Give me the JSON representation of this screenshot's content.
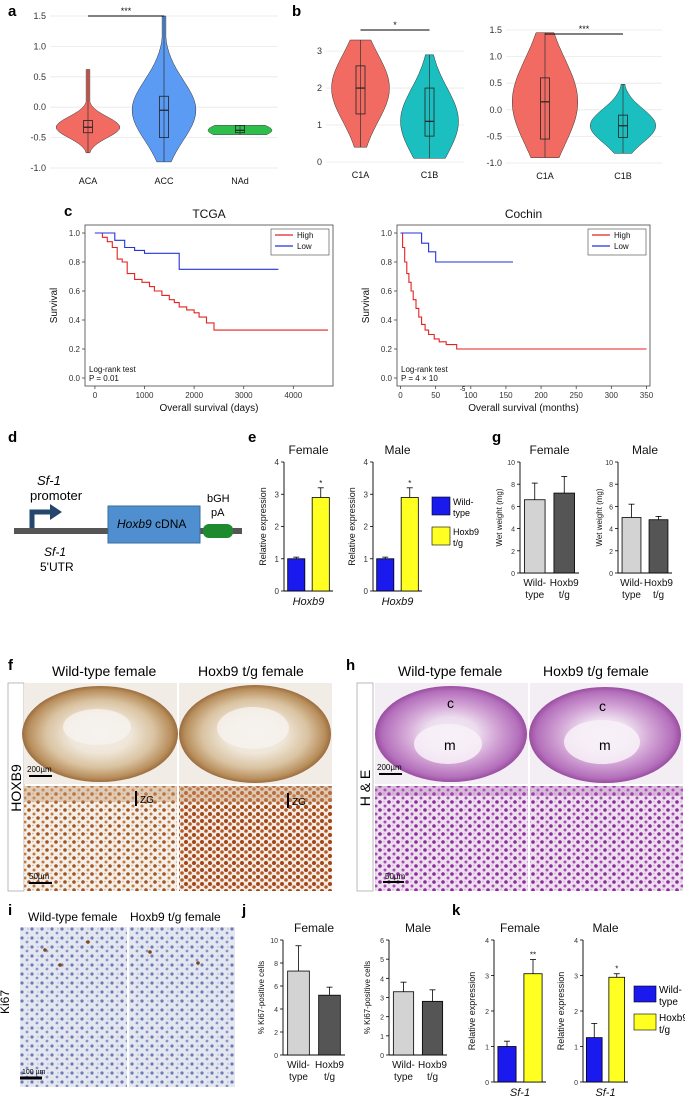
{
  "panels": {
    "a": {
      "letter": "a"
    },
    "b": {
      "letter": "b"
    },
    "c": {
      "letter": "c"
    },
    "d": {
      "letter": "d"
    },
    "e": {
      "letter": "e"
    },
    "f": {
      "letter": "f"
    },
    "g": {
      "letter": "g"
    },
    "h": {
      "letter": "h"
    },
    "i": {
      "letter": "i"
    },
    "j": {
      "letter": "j"
    },
    "k": {
      "letter": "k"
    }
  },
  "chart_data": [
    {
      "id": "a",
      "type": "violin+box",
      "categories": [
        "ACA",
        "ACC",
        "NAd"
      ],
      "colors": [
        "#f26b63",
        "#5b9bf3",
        "#2dbf4c"
      ],
      "yticks": [
        "-1.0",
        "-0.5",
        "0.0",
        "0.5",
        "1.0",
        "1.5"
      ],
      "ylim": [
        -1.0,
        1.5
      ],
      "medians": [
        -0.33,
        -0.05,
        -0.38
      ],
      "q1": [
        -0.42,
        -0.5,
        -0.42
      ],
      "q3": [
        -0.22,
        0.18,
        -0.3
      ],
      "ranges": [
        [
          -0.75,
          0.62
        ],
        [
          -0.9,
          1.5
        ],
        [
          -0.45,
          -0.3
        ]
      ],
      "significance": "***"
    },
    {
      "id": "b1",
      "type": "violin+box",
      "categories": [
        "C1A",
        "C1B"
      ],
      "colors": [
        "#f26b63",
        "#1bbfbf"
      ],
      "yticks": [
        "0",
        "1",
        "2",
        "3"
      ],
      "ylim": [
        0,
        3.3
      ],
      "medians": [
        2.0,
        1.1
      ],
      "q1": [
        1.3,
        0.7
      ],
      "q3": [
        2.6,
        2.0
      ],
      "ranges": [
        [
          0.4,
          3.3
        ],
        [
          0.1,
          2.9
        ]
      ],
      "significance": "*"
    },
    {
      "id": "b2",
      "type": "violin+box",
      "categories": [
        "C1A",
        "C1B"
      ],
      "colors": [
        "#f26b63",
        "#1bbfbf"
      ],
      "yticks": [
        "-1.0",
        "-0.5",
        "0.0",
        "0.5",
        "1.0",
        "1.5"
      ],
      "ylim": [
        -1.0,
        1.5
      ],
      "medians": [
        0.15,
        -0.3
      ],
      "q1": [
        -0.55,
        -0.52
      ],
      "q3": [
        0.6,
        -0.1
      ],
      "ranges": [
        [
          -0.9,
          1.45
        ],
        [
          -0.82,
          0.48
        ]
      ],
      "significance": "***"
    },
    {
      "id": "c1",
      "type": "line",
      "title": "TCGA",
      "xlabel": "Overall survival (days)",
      "ylabel": "Survival",
      "xticks": [
        "0",
        "1000",
        "2000",
        "3000",
        "4000"
      ],
      "xlim": [
        -200,
        4800
      ],
      "yticks": [
        "0.0",
        "0.2",
        "0.4",
        "0.6",
        "0.8",
        "1.0"
      ],
      "ylim": [
        0,
        1
      ],
      "legend": [
        {
          "name": "High",
          "color": "#e52222"
        },
        {
          "name": "Low",
          "color": "#2233dd"
        }
      ],
      "series": [
        {
          "name": "High",
          "color": "#e52222",
          "x": [
            0,
            150,
            250,
            350,
            450,
            550,
            650,
            800,
            950,
            1100,
            1200,
            1350,
            1500,
            1600,
            1700,
            1850,
            2000,
            2100,
            2250,
            2400,
            3000,
            4700
          ],
          "y": [
            1.0,
            0.97,
            0.94,
            0.9,
            0.82,
            0.8,
            0.72,
            0.68,
            0.66,
            0.63,
            0.6,
            0.57,
            0.54,
            0.52,
            0.49,
            0.47,
            0.45,
            0.42,
            0.38,
            0.33,
            0.33,
            0.33
          ]
        },
        {
          "name": "Low",
          "color": "#2233dd",
          "x": [
            0,
            300,
            400,
            600,
            800,
            1000,
            1500,
            1700,
            3000,
            3700
          ],
          "y": [
            1.0,
            1.0,
            0.95,
            0.9,
            0.88,
            0.86,
            0.86,
            0.75,
            0.75,
            0.75
          ]
        }
      ],
      "annotation": [
        "Log-rank test",
        "P = 0.01"
      ]
    },
    {
      "id": "c2",
      "type": "line",
      "title": "Cochin",
      "xlabel": "Overall survival (months)",
      "ylabel": "Survival",
      "xticks": [
        "0",
        "50",
        "100",
        "150",
        "200",
        "250",
        "300",
        "350"
      ],
      "xlim": [
        -5,
        355
      ],
      "yticks": [
        "0.0",
        "0.2",
        "0.4",
        "0.6",
        "0.8",
        "1.0"
      ],
      "ylim": [
        0,
        1
      ],
      "legend": [
        {
          "name": "High",
          "color": "#e52222"
        },
        {
          "name": "Low",
          "color": "#2233dd"
        }
      ],
      "series": [
        {
          "name": "High",
          "color": "#e52222",
          "x": [
            0,
            3,
            6,
            9,
            12,
            15,
            18,
            22,
            26,
            30,
            35,
            40,
            48,
            55,
            65,
            80,
            350
          ],
          "y": [
            1.0,
            0.9,
            0.8,
            0.72,
            0.66,
            0.6,
            0.54,
            0.48,
            0.42,
            0.37,
            0.33,
            0.3,
            0.27,
            0.25,
            0.23,
            0.2,
            0.2
          ]
        },
        {
          "name": "Low",
          "color": "#2233dd",
          "x": [
            0,
            20,
            30,
            40,
            50,
            160
          ],
          "y": [
            1.0,
            1.0,
            0.93,
            0.87,
            0.8,
            0.8
          ]
        }
      ],
      "annotation": [
        "Log-rank test",
        "P = 4 × 10"
      ]
    },
    {
      "id": "e1",
      "type": "bar",
      "title": "Female",
      "xlabel": "Hoxb9",
      "ylabel": "Relative expression",
      "categories": [
        "Wild-type",
        "Hoxb9 t/g"
      ],
      "values": [
        1.0,
        2.9
      ],
      "errors": [
        0.05,
        0.3
      ],
      "colors": [
        "#1a1aee",
        "#ffff22"
      ],
      "yticks": [
        "0",
        "1",
        "2",
        "3",
        "4"
      ],
      "ylim": [
        0,
        4
      ],
      "significance": "*"
    },
    {
      "id": "e2",
      "type": "bar",
      "title": "Male",
      "xlabel": "Hoxb9",
      "ylabel": "Relative expression",
      "categories": [
        "Wild-type",
        "Hoxb9 t/g"
      ],
      "values": [
        1.0,
        2.9
      ],
      "errors": [
        0.05,
        0.3
      ],
      "colors": [
        "#1a1aee",
        "#ffff22"
      ],
      "yticks": [
        "0",
        "1",
        "2",
        "3",
        "4"
      ],
      "ylim": [
        0,
        4
      ],
      "significance": "*"
    },
    {
      "id": "g1",
      "type": "bar",
      "title": "Female",
      "ylabel": "Wet weight (mg)",
      "categories": [
        "Wild-type",
        "Hoxb9 t/g"
      ],
      "values": [
        6.6,
        7.2
      ],
      "errors": [
        1.5,
        1.5
      ],
      "colors": [
        "#d3d3d3",
        "#555555"
      ],
      "yticks": [
        "0",
        "2",
        "4",
        "6",
        "8",
        "10"
      ],
      "ylim": [
        0,
        10
      ]
    },
    {
      "id": "g2",
      "type": "bar",
      "title": "Male",
      "ylabel": "Wet weight (mg)",
      "categories": [
        "Wild-type",
        "Hoxb9 t/g"
      ],
      "values": [
        5.0,
        4.8
      ],
      "errors": [
        1.2,
        0.3
      ],
      "colors": [
        "#d3d3d3",
        "#555555"
      ],
      "yticks": [
        "0",
        "2",
        "4",
        "6",
        "8",
        "10"
      ],
      "ylim": [
        0,
        10
      ]
    },
    {
      "id": "j1",
      "type": "bar",
      "title": "Female",
      "ylabel": "% Ki67-positive cells",
      "categories": [
        "Wild-type",
        "Hoxb9 t/g"
      ],
      "values": [
        7.3,
        5.2
      ],
      "errors": [
        2.2,
        0.7
      ],
      "colors": [
        "#d3d3d3",
        "#555555"
      ],
      "yticks": [
        "0",
        "2",
        "4",
        "6",
        "8",
        "10"
      ],
      "ylim": [
        0,
        10
      ]
    },
    {
      "id": "j2",
      "type": "bar",
      "title": "Male",
      "ylabel": "% Ki67-positive cells",
      "categories": [
        "Wild-type",
        "Hoxb9 t/g"
      ],
      "values": [
        3.3,
        2.8
      ],
      "errors": [
        0.5,
        0.6
      ],
      "colors": [
        "#d3d3d3",
        "#555555"
      ],
      "yticks": [
        "0",
        "1",
        "2",
        "3",
        "4",
        "5",
        "6"
      ],
      "ylim": [
        0,
        6
      ]
    },
    {
      "id": "k1",
      "type": "bar",
      "title": "Female",
      "xlabel": "Sf-1",
      "ylabel": "Relative expression",
      "categories": [
        "Wild-type",
        "Hoxb9 t/g"
      ],
      "values": [
        1.0,
        3.05
      ],
      "errors": [
        0.15,
        0.4
      ],
      "colors": [
        "#1a1aee",
        "#ffff22"
      ],
      "yticks": [
        "0",
        "1",
        "2",
        "3",
        "4"
      ],
      "ylim": [
        0,
        4
      ],
      "significance": "**"
    },
    {
      "id": "k2",
      "type": "bar",
      "title": "Male",
      "xlabel": "Sf-1",
      "ylabel": "Relative expression",
      "categories": [
        "Wild-type",
        "Hoxb9 t/g"
      ],
      "values": [
        1.25,
        2.95
      ],
      "errors": [
        0.4,
        0.1
      ],
      "colors": [
        "#1a1aee",
        "#ffff22"
      ],
      "yticks": [
        "0",
        "1",
        "2",
        "3",
        "4"
      ],
      "ylim": [
        0,
        4
      ],
      "significance": "*"
    }
  ],
  "legend_expr": {
    "items": [
      {
        "label1": "Wild-",
        "label2": "type",
        "color": "#1a1aee"
      },
      {
        "label1": "Hoxb9",
        "label2": "t/g",
        "color": "#ffff22"
      }
    ]
  },
  "construct": {
    "sf1": "Sf-1",
    "promoter": "promoter",
    "utr_gene": "Sf-1",
    "utr": "5'UTR",
    "cdna_gene": "Hoxb9",
    "cdna": "cDNA",
    "bgh": "bGH",
    "pa": "pA"
  },
  "micro": {
    "f_title_left": "Wild-type female",
    "f_title_right": "Hoxb9 t/g female",
    "f_side": "HOXB9",
    "f_scale_top": "200µm",
    "f_scale_bottom": "50µm",
    "zg": "ZG",
    "h_title_left": "Wild-type female",
    "h_title_right": "Hoxb9 t/g female",
    "h_side": "H & E",
    "h_scale_top": "200µm",
    "h_scale_bottom": "50µm",
    "cortex": "c",
    "medulla": "m",
    "i_title_left": "Wild-type female",
    "i_title_right": "Hoxb9 t/g female",
    "i_side": "Ki67",
    "i_scale": "100 µm"
  },
  "c_exponent": "-5"
}
